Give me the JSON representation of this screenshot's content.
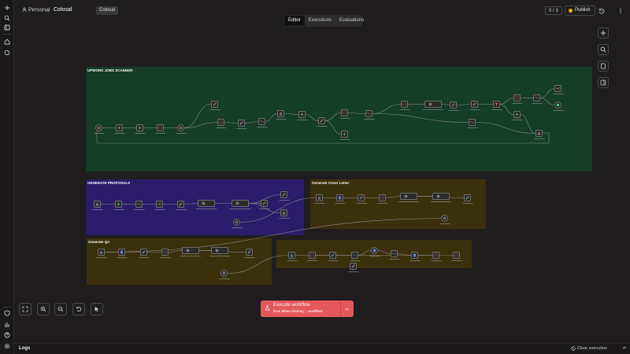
{
  "header": {
    "personal_label": "Personal",
    "separator": "",
    "workflow_name": "Colosal",
    "tag": "Colosal",
    "tabs": [
      {
        "label": "Editor",
        "active": true
      },
      {
        "label": "Executions",
        "active": false
      },
      {
        "label": "Evaluations",
        "active": false
      }
    ],
    "counter": "0 / 3",
    "publish_label": "Publish",
    "publish_dot_color": "#f2b500",
    "history_icon": "history-icon",
    "more_icon": "more-vertical-icon"
  },
  "rail": {
    "top_icons": [
      "plus-icon",
      "search-icon",
      "panel-icon",
      "home-icon",
      "chat-icon"
    ],
    "bottom_icons": [
      "shield-icon",
      "chart-icon",
      "help-icon",
      "settings-icon"
    ]
  },
  "stickies": [
    {
      "id": "upwork",
      "title": "UPWORK JOBS SCANNER",
      "subtitle": "",
      "color": "#153d27"
    },
    {
      "id": "proposals",
      "title": "GENERATE PROPOSALS",
      "subtitle": "",
      "color": "#2b1c6b"
    },
    {
      "id": "cover",
      "title": "Generate Cover Letter",
      "subtitle": "",
      "color": "#3b300c"
    },
    {
      "id": "qa",
      "title": "Generate QA",
      "subtitle": "",
      "color": "#3b300c"
    },
    {
      "id": "sheet",
      "title": "",
      "subtitle": "",
      "color": "#3b300c"
    }
  ],
  "right_toolbar": [
    "plus-icon",
    "search-icon",
    "note-icon",
    "panel-icon"
  ],
  "bottom_controls": [
    "fit-view-icon",
    "zoom-in-icon",
    "zoom-out-icon",
    "undo-icon",
    "cursor-icon"
  ],
  "execute": {
    "title": "Execute workflow",
    "subtitle": "from When clicking '...workflow'",
    "color": "#e5585a"
  },
  "logs": {
    "label": "Logs",
    "clear_label": "Clear execution"
  }
}
